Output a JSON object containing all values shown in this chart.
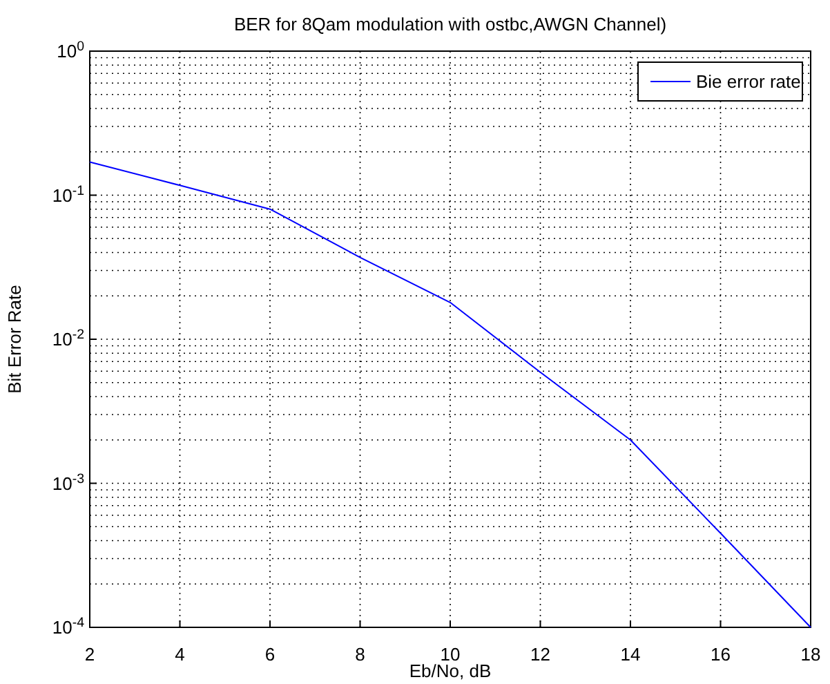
{
  "chart_data": {
    "type": "line",
    "title": "BER for 8Qam modulation with ostbc,AWGN Channel)",
    "xlabel": "Eb/No, dB",
    "ylabel": "Bit Error Rate",
    "x": [
      2,
      4,
      6,
      8,
      10,
      12,
      14,
      16,
      18
    ],
    "series": [
      {
        "name": "Bie error rate",
        "color": "#0000ff",
        "values": [
          0.17,
          0.117,
          0.08,
          0.037,
          0.018,
          0.0059,
          0.002,
          0.00045,
          0.0001
        ]
      }
    ],
    "xlim": [
      2,
      18
    ],
    "xticks": [
      2,
      4,
      6,
      8,
      10,
      12,
      14,
      16,
      18
    ],
    "ylim": [
      0.0001,
      1
    ],
    "yticks": [
      {
        "value": 0.0001,
        "label": "10$^{-4}$"
      },
      {
        "value": 0.001,
        "label": "10$^{-3}$"
      },
      {
        "value": 0.01,
        "label": "10$^{-2}$"
      },
      {
        "value": 0.1,
        "label": "10$^{-1}$"
      },
      {
        "value": 1,
        "label": "10$^{0}$"
      }
    ],
    "log": "y",
    "grid": true,
    "legend": "top right",
    "marker": "none",
    "line_style": "solid"
  }
}
